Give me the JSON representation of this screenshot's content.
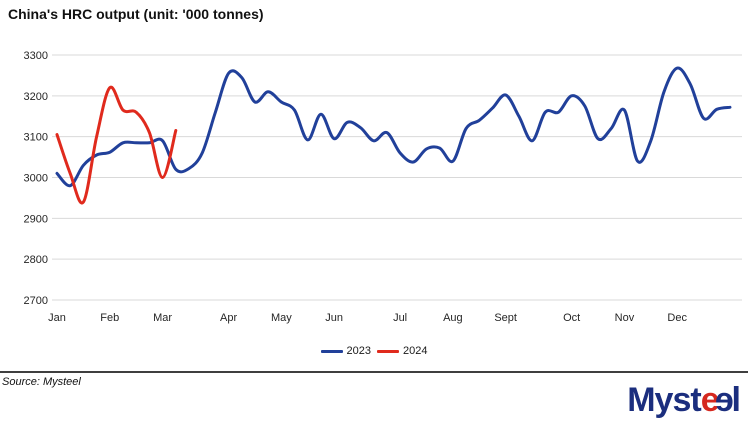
{
  "header": {
    "title": "China's HRC output (unit: '000 tonnes)"
  },
  "chart_data": {
    "type": "line",
    "title": "China's HRC output (unit: '000 tonnes)",
    "unit": "'000 tonnes",
    "sampling": "weekly",
    "grid": "horizontal",
    "grid_color": "#D9D9D9",
    "legend_position": "bottom",
    "x_axis": {
      "tick_labels": [
        "Jan",
        "Feb",
        "Mar",
        "Apr",
        "May",
        "Jun",
        "Jul",
        "Aug",
        "Sept",
        "Oct",
        "Nov",
        "Dec"
      ],
      "tick_week_index": [
        0,
        4,
        8,
        13,
        17,
        21,
        26,
        30,
        34,
        39,
        43,
        47
      ],
      "total_weeks": 52
    },
    "y_axis": {
      "ticks": [
        3300,
        3200,
        3100,
        3000,
        2900,
        2800,
        2700
      ],
      "range": [
        2700,
        3300
      ]
    },
    "series": [
      {
        "name": "2023",
        "color": "#21409A",
        "values": [
          3010,
          2980,
          3030,
          3055,
          3062,
          3085,
          3085,
          3085,
          3090,
          3020,
          3022,
          3060,
          3160,
          3255,
          3245,
          3185,
          3210,
          3185,
          3165,
          3092,
          3155,
          3095,
          3135,
          3122,
          3090,
          3110,
          3060,
          3038,
          3070,
          3072,
          3040,
          3120,
          3140,
          3170,
          3202,
          3150,
          3090,
          3160,
          3160,
          3200,
          3175,
          3095,
          3120,
          3165,
          3040,
          3090,
          3210,
          3268,
          3228,
          3145,
          3167,
          3172
        ]
      },
      {
        "name": "2024",
        "color": "#E02A1D",
        "values": [
          3105,
          3010,
          2940,
          3100,
          3220,
          3165,
          3160,
          3110,
          3000,
          3115
        ]
      }
    ]
  },
  "footer": {
    "source": "Source: Mysteel"
  },
  "logo": {
    "text": "Mysteel",
    "prefix": "Myst",
    "mid_red": "e",
    "mid_blue": "e",
    "suffix": "l",
    "blue": "#1B2E7E",
    "red": "#D5281F"
  }
}
